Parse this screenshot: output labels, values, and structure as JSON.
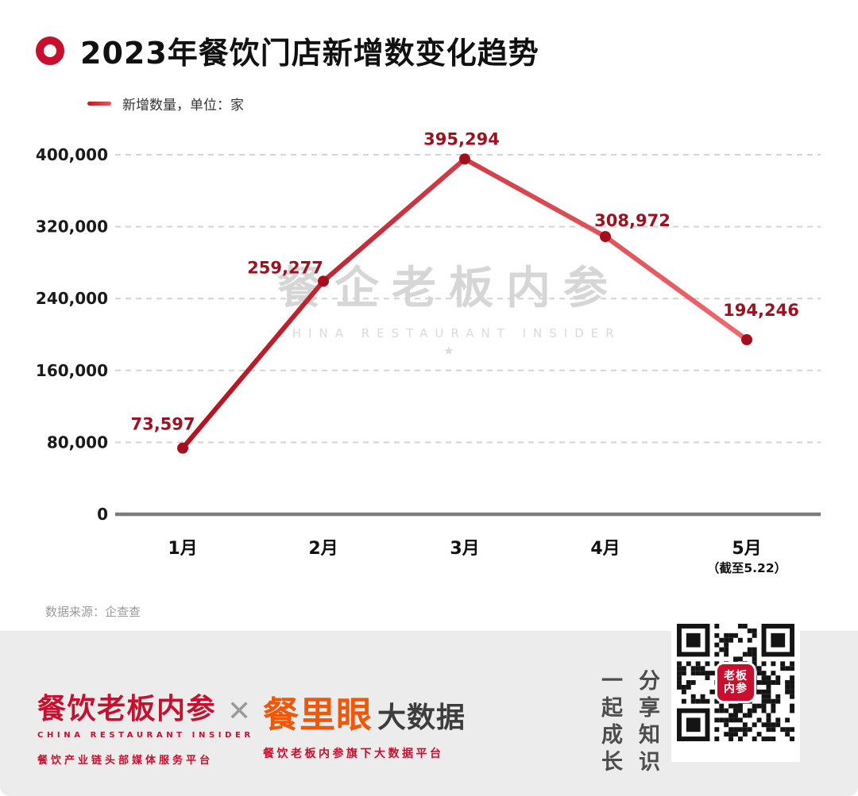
{
  "header": {
    "title": "2023年餐饮门店新增数变化趋势"
  },
  "legend": {
    "label": "新增数量，单位：家"
  },
  "chart_data": {
    "type": "line",
    "title": "2023年餐饮门店新增数变化趋势",
    "legend": "新增数量，单位：家",
    "categories": [
      "1月",
      "2月",
      "3月",
      "4月",
      "5月"
    ],
    "category_note": {
      "index": 4,
      "text": "（截至5.22）"
    },
    "values": [
      73597,
      259277,
      395294,
      308972,
      194246
    ],
    "value_labels": [
      "73,597",
      "259,277",
      "395,294",
      "308,972",
      "194,246"
    ],
    "ylim": [
      0,
      400000
    ],
    "yticks": [
      0,
      80000,
      160000,
      240000,
      320000,
      400000
    ],
    "ytick_labels": [
      "0",
      "80,000",
      "160,000",
      "240,000",
      "320,000",
      "400,000"
    ],
    "grid": "horizontal-dashed",
    "legend_position": "top-left",
    "line_colors": {
      "start": "#b2101f",
      "end": "#ee6a6e"
    },
    "point_color": "#a50f1d",
    "label_color": "#9e1220"
  },
  "watermark": {
    "line1": "餐企老板内参",
    "line2": "CHINA RESTAURANT INSIDER",
    "star": "★"
  },
  "source": "数据来源：企查查",
  "footer": {
    "brand_left": {
      "name": "餐饮老板内参",
      "subtitle": "CHINA RESTAURANT INSIDER",
      "tagline": "餐饮产业链头部媒体服务平台"
    },
    "separator": "✕",
    "brand_right": {
      "name": "餐里眼",
      "suffix": "大数据",
      "tagline": "餐饮老板内参旗下大数据平台"
    },
    "slogan_columns": [
      "一起成长",
      "分享知识"
    ],
    "qr_center_text": [
      "老板",
      "内参"
    ]
  }
}
